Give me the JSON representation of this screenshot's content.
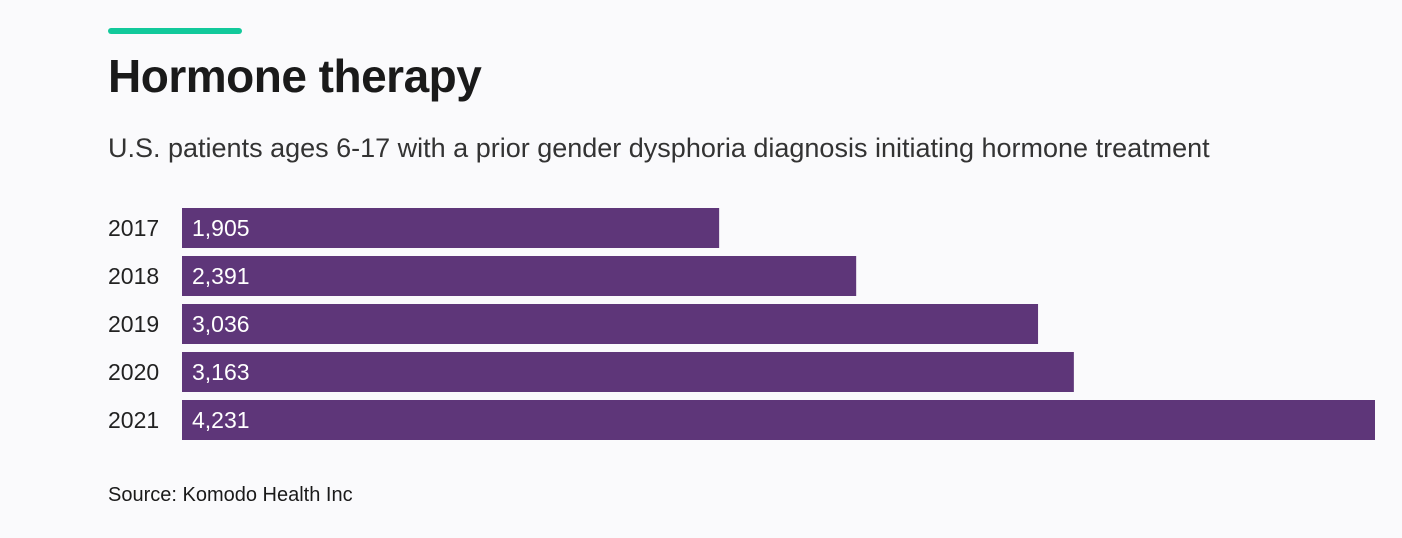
{
  "header": {
    "title": "Hormone therapy",
    "subtitle": "U.S. patients ages 6-17 with a prior gender dysphoria diagnosis initiating hormone treatment"
  },
  "footer": {
    "source": "Source: Komodo Health Inc"
  },
  "colors": {
    "accent": "#12c99b",
    "bar": "#5e3679",
    "bar_label": "#ffffff",
    "category_label": "#222222"
  },
  "chart_data": {
    "type": "bar",
    "orientation": "horizontal",
    "categories": [
      "2017",
      "2018",
      "2019",
      "2020",
      "2021"
    ],
    "values": [
      1905,
      2391,
      3036,
      3163,
      4231
    ],
    "value_labels": [
      "1,905",
      "2,391",
      "3,036",
      "3,163",
      "4,231"
    ],
    "xlim": [
      0,
      4231
    ],
    "grid": false,
    "legend": "none"
  }
}
